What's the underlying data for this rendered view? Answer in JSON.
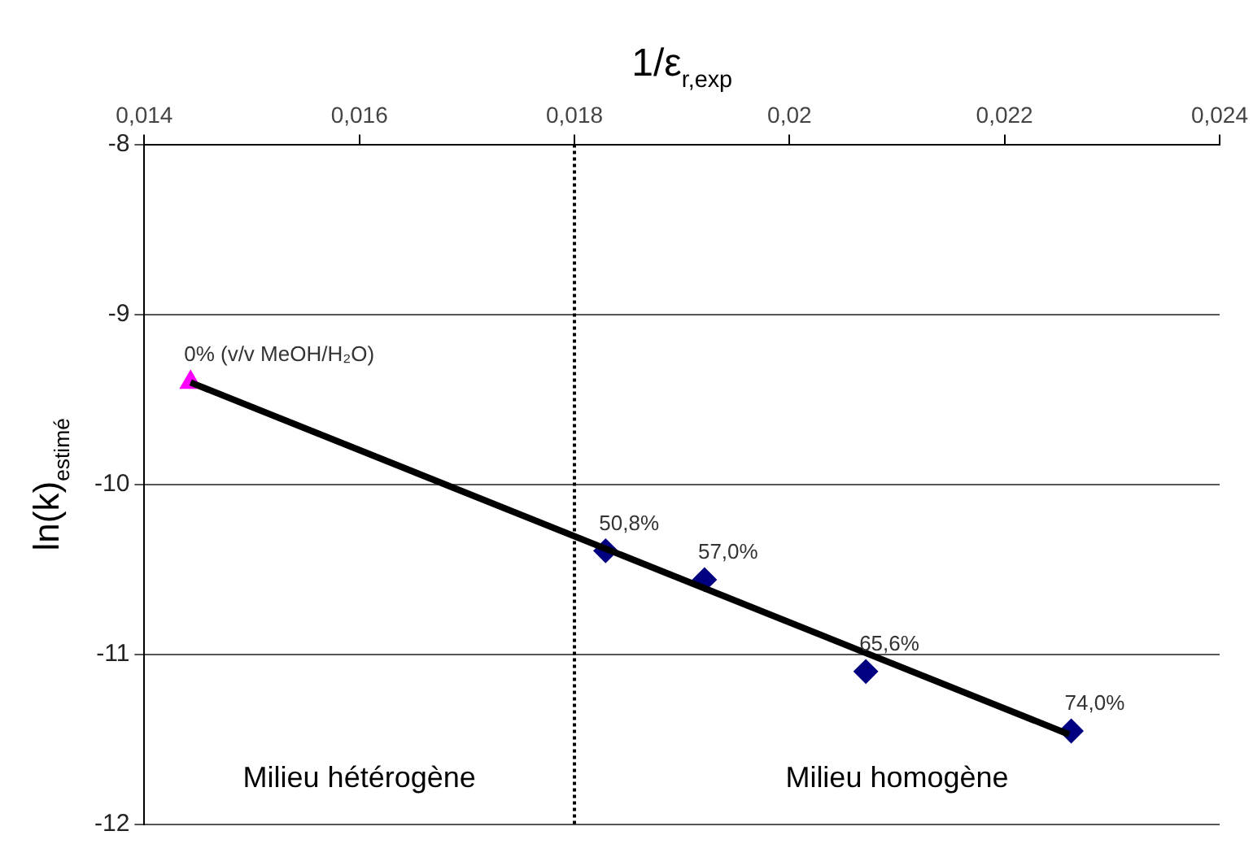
{
  "chart_data": {
    "type": "scatter",
    "title": "1/ε$_{r,exp}$",
    "ylabel": "ln(k)$_{estimé}$",
    "annotations": [
      "Milieu hétérogène",
      "Milieu homogène",
      {
        "text": "0% (v/v MeOH/H₂O)",
        "x": 0.01443,
        "y": -9.4
      },
      {
        "text": "50,8%",
        "x": 0.01829,
        "y": -10.39
      },
      {
        "text": "57,0%",
        "x": 0.01921,
        "y": -10.56
      },
      {
        "text": "65,6%",
        "x": 0.02071,
        "y": -11.1
      },
      {
        "text": "74,0%",
        "x": 0.02262,
        "y": -11.45
      }
    ],
    "series": [
      {
        "type": "line",
        "x": [
          0.01443,
          0.0226
        ],
        "values": [
          -9.4,
          -11.47
        ],
        "color": "#000000",
        "marker": "none"
      },
      {
        "x": [
          0.01443
        ],
        "values": [
          -9.4
        ],
        "color": "#ff00ff",
        "marker": "triangle"
      },
      {
        "x": [
          0.01829,
          0.01921,
          0.02071,
          0.02262
        ],
        "values": [
          -10.39,
          -10.56,
          -11.1,
          -11.45
        ],
        "color": "#000080",
        "marker": "diamond"
      }
    ],
    "xlim": [
      0.014,
      0.024
    ],
    "ylim": [
      -12,
      -8
    ],
    "xticks": [
      {
        "value": 0.014,
        "label": "0,014"
      },
      {
        "value": 0.016,
        "label": "0,016"
      },
      {
        "value": 0.018,
        "label": "0,018"
      },
      {
        "value": 0.02,
        "label": "0,02"
      },
      {
        "value": 0.022,
        "label": "0,022"
      },
      {
        "value": 0.024,
        "label": "0,024"
      }
    ],
    "yticks": [
      -8,
      -9,
      -10,
      -11,
      -12
    ],
    "ref_lines": [
      {
        "axis": "x",
        "value": 0.018,
        "line_style": "dotted",
        "color": "#000000"
      }
    ],
    "grid": "y",
    "legend": false
  }
}
